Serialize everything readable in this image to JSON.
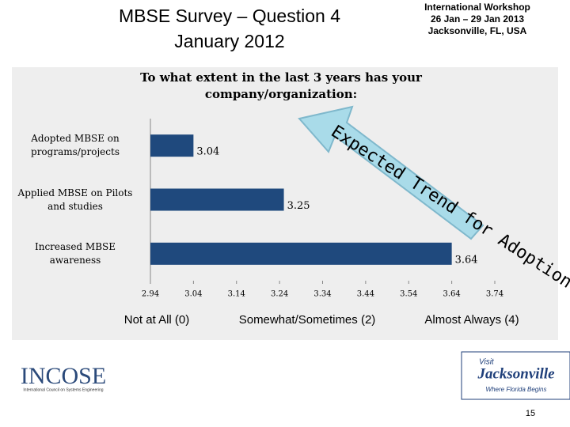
{
  "header": {
    "title_line1": "MBSE Survey – Question 4",
    "title_line2": "January 2012",
    "event_line1": "International Workshop",
    "event_line2": "26 Jan – 29 Jan 2013",
    "event_line3": "Jacksonville, FL, USA"
  },
  "chart_data": {
    "type": "hbar",
    "title": "To what extent in the last 3 years has your company/organization:",
    "categories": [
      "Adopted MBSE on programs/projects",
      "Applied MBSE on Pilots and studies",
      "Increased MBSE awareness"
    ],
    "values": [
      3.04,
      3.25,
      3.64
    ],
    "color": "#1f497d",
    "xlim": [
      2.94,
      3.74
    ],
    "xticks": [
      2.94,
      3.04,
      3.14,
      3.24,
      3.34,
      3.44,
      3.54,
      3.64,
      3.74
    ],
    "grid": false,
    "annotation": "Expected Trend for Adoption"
  },
  "scale_labels": [
    "Not at All (0)",
    "Somewhat/Sometimes (2)",
    "Almost Always (4)"
  ],
  "footer": {
    "logo_left": "INCOSE",
    "logo_left_sub": "International Council on Systems Engineering",
    "logo_right_top": "Visit",
    "logo_right": "Jacksonville",
    "logo_right_sub": "Where Florida Begins",
    "page_number": "15"
  }
}
